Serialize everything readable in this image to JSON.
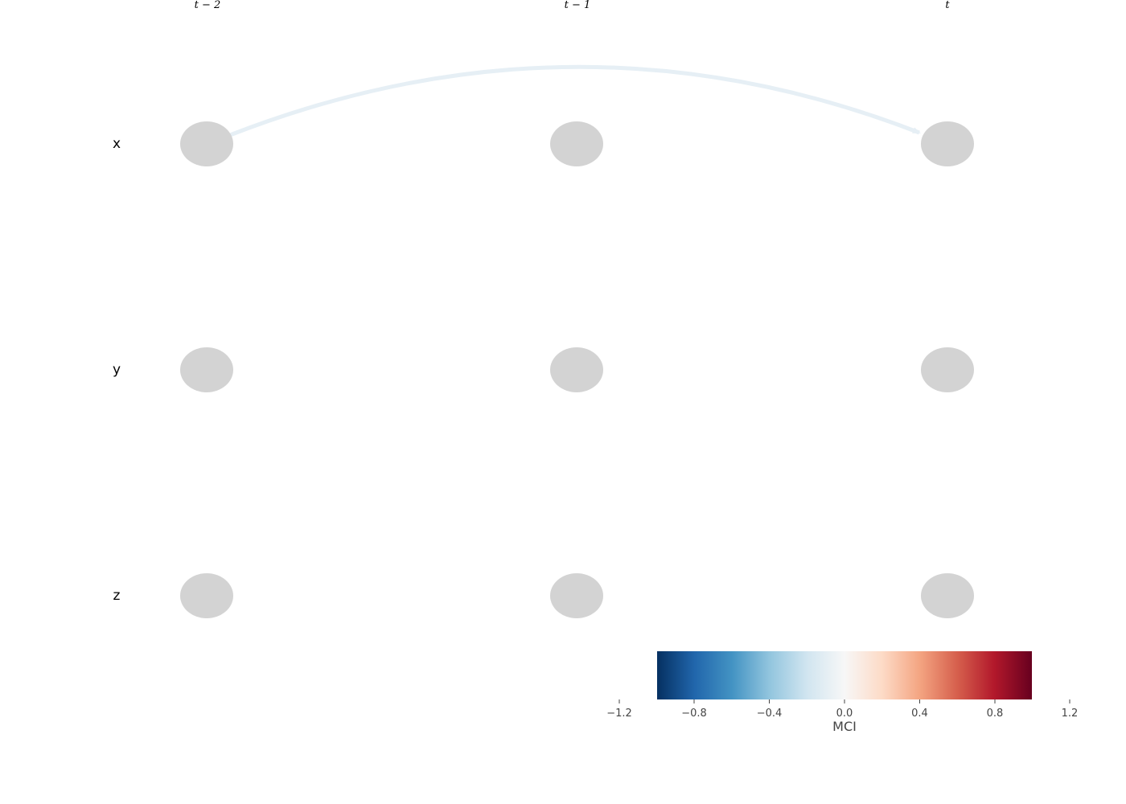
{
  "time_labels": [
    "t − 2",
    "t − 1",
    "t"
  ],
  "variables": [
    "x",
    "y",
    "z"
  ],
  "node_color": "#d3d3d3",
  "links": [
    {
      "from_var": "x",
      "from_time": 0,
      "to_var": "x",
      "to_time": 2,
      "mci": -0.1,
      "color": "#e6eff5"
    }
  ],
  "colorbar": {
    "label": "MCI",
    "ticks": [
      "−1.2",
      "−0.8",
      "−0.4",
      "0.0",
      "0.4",
      "0.8",
      "1.2"
    ],
    "range": [
      -1.0,
      1.0
    ],
    "axis_range": [
      -1.2,
      1.2
    ],
    "colormap": "RdBu_r",
    "stops": [
      "#053061",
      "#2166ac",
      "#4393c3",
      "#92c5de",
      "#d1e5f0",
      "#f7f7f7",
      "#fddbc7",
      "#f4a582",
      "#d6604d",
      "#b2182b",
      "#67001f"
    ]
  }
}
